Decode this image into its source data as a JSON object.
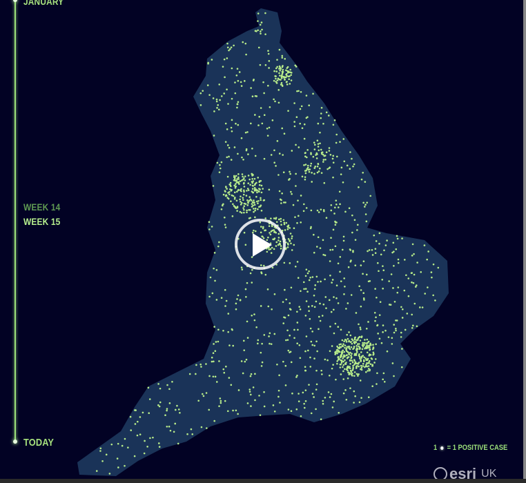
{
  "timeline": {
    "start_label": "JANUARY",
    "weeks": [
      "WEEK 14",
      "WEEK 15"
    ],
    "end_label": "TODAY"
  },
  "legend": {
    "count": "1",
    "equals_label": "= 1 POSITIVE CASE"
  },
  "logo": {
    "brand": "esri",
    "region": "UK"
  },
  "colors": {
    "background": "#020224",
    "land": "#1a3358",
    "case_dot": "#b8ec8a",
    "accent": "#9be07a"
  },
  "video": {
    "play_icon": "play-icon"
  }
}
